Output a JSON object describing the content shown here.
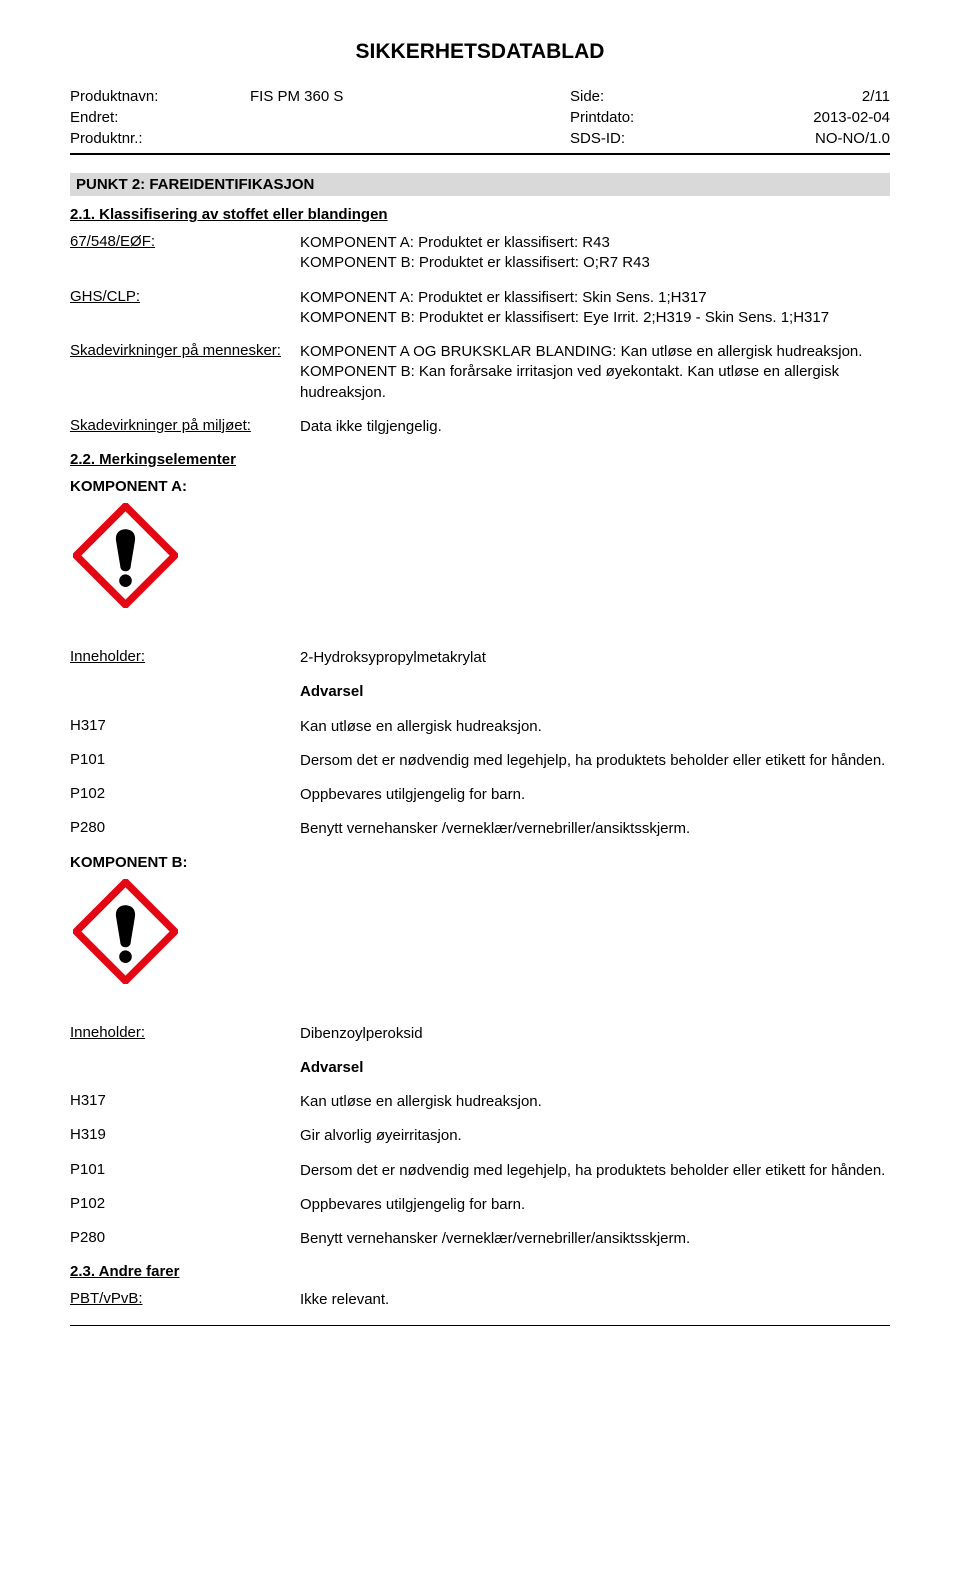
{
  "doc": {
    "title": "SIKKERHETSDATABLAD",
    "meta": {
      "produktnavn_label": "Produktnavn:",
      "produktnavn_value": "FIS PM 360 S",
      "side_label": "Side:",
      "side_value": "2/11",
      "endret_label": "Endret:",
      "endret_value": "",
      "printdato_label": "Printdato:",
      "printdato_value": "2013-02-04",
      "produktnr_label": "Produktnr.:",
      "produktnr_value": "",
      "sdsid_label": "SDS-ID:",
      "sdsid_value": "NO-NO/1.0"
    },
    "section2": {
      "heading": "PUNKT 2: FAREIDENTIFIKASJON",
      "sub21": "2.1. Klassifisering av stoffet eller blandingen",
      "rows": {
        "r1_label": "67/548/EØF:",
        "r1_value": "KOMPONENT A: Produktet er klassifisert: R43\nKOMPONENT B: Produktet er klassifisert: O;R7 R43",
        "r2_label": "GHS/CLP:",
        "r2_value": "KOMPONENT A: Produktet er klassifisert: Skin Sens. 1;H317\nKOMPONENT B: Produktet er klassifisert: Eye Irrit. 2;H319 - Skin Sens. 1;H317",
        "r3_label": "Skadevirkninger på mennesker:",
        "r3_value": "KOMPONENT A OG BRUKSKLAR BLANDING: Kan utløse en allergisk hudreaksjon.\nKOMPONENT B: Kan forårsake irritasjon ved øyekontakt. Kan utløse en allergisk hudreaksjon.",
        "r4_label": "Skadevirkninger på miljøet:",
        "r4_value": "Data ikke tilgjengelig."
      },
      "sub22": "2.2. Merkingselementer",
      "compA_label": "KOMPONENT A:",
      "compA": {
        "inneholder_label": "Inneholder:",
        "inneholder_value": "2-Hydroksypropylmetakrylat",
        "signal": "Advarsel",
        "h317_code": "H317",
        "h317_text": "Kan utløse en allergisk hudreaksjon.",
        "p101_code": "P101",
        "p101_text": "Dersom det er nødvendig med legehjelp, ha produktets beholder eller etikett for hånden.",
        "p102_code": "P102",
        "p102_text": "Oppbevares utilgjengelig for barn.",
        "p280_code": "P280",
        "p280_text": "Benytt vernehansker /verneklær/vernebriller/ansiktsskjerm."
      },
      "compB_label": "KOMPONENT B:",
      "compB": {
        "inneholder_label": "Inneholder:",
        "inneholder_value": "Dibenzoylperoksid",
        "signal": "Advarsel",
        "h317_code": "H317",
        "h317_text": "Kan utløse en allergisk hudreaksjon.",
        "h319_code": "H319",
        "h319_text": "Gir alvorlig øyeirritasjon.",
        "p101_code": "P101",
        "p101_text": "Dersom det er nødvendig med legehjelp, ha produktets beholder eller etikett for hånden.",
        "p102_code": "P102",
        "p102_text": "Oppbevares utilgjengelig for barn.",
        "p280_code": "P280",
        "p280_text": "Benytt vernehansker /verneklær/vernebriller/ansiktsskjerm."
      },
      "sub23": "2.3. Andre farer",
      "pbt_label": "PBT/vPvB:",
      "pbt_value": "Ikke relevant."
    },
    "style": {
      "heading_bg": "#d9d9d9",
      "pictogram_border": "#e30613",
      "pictogram_fill": "#ffffff",
      "pictogram_symbol": "#000000",
      "text_color": "#000000",
      "background": "#ffffff"
    }
  }
}
